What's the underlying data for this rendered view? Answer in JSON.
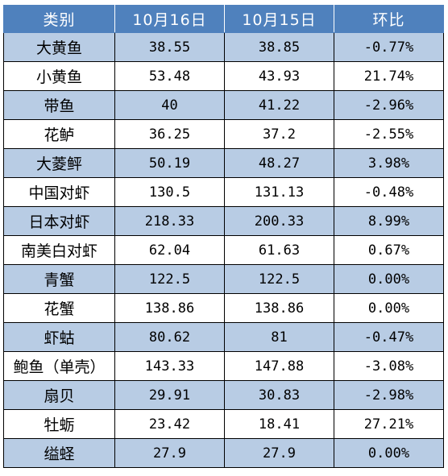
{
  "table": {
    "headers": [
      "类别",
      "10月16日",
      "10月15日",
      "环比"
    ],
    "rows": [
      [
        "大黄鱼",
        "38.55",
        "38.85",
        "-0.77%"
      ],
      [
        "小黄鱼",
        "53.48",
        "43.93",
        "21.74%"
      ],
      [
        "带鱼",
        "40",
        "41.22",
        "-2.96%"
      ],
      [
        "花鲈",
        "36.25",
        "37.2",
        "-2.55%"
      ],
      [
        "大菱鲆",
        "50.19",
        "48.27",
        "3.98%"
      ],
      [
        "中国对虾",
        "130.5",
        "131.13",
        "-0.48%"
      ],
      [
        "日本对虾",
        "218.33",
        "200.33",
        "8.99%"
      ],
      [
        "南美白对虾",
        "62.04",
        "61.63",
        "0.67%"
      ],
      [
        "青蟹",
        "122.5",
        "122.5",
        "0.00%"
      ],
      [
        "花蟹",
        "138.86",
        "138.86",
        "0.00%"
      ],
      [
        "虾蛄",
        "80.62",
        "81",
        "-0.47%"
      ],
      [
        "鲍鱼（单壳）",
        "143.33",
        "147.88",
        "-3.08%"
      ],
      [
        "扇贝",
        "29.91",
        "30.83",
        "-2.98%"
      ],
      [
        "牡蛎",
        "23.42",
        "18.41",
        "27.21%"
      ],
      [
        "缢蛏",
        "27.9",
        "27.9",
        "0.00%"
      ]
    ]
  },
  "colors": {
    "header_bg": "#4f81bd",
    "shaded_row_bg": "#b8cce4",
    "plain_row_bg": "#ffffff"
  }
}
